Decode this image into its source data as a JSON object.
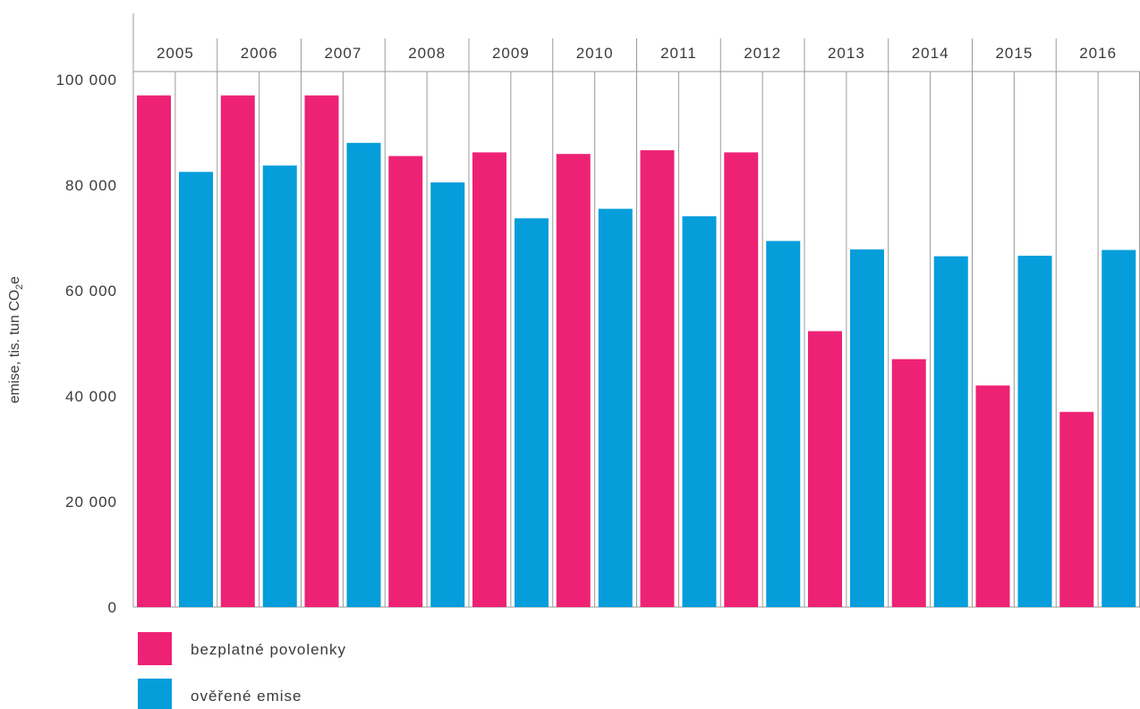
{
  "chart_data": {
    "type": "bar",
    "title": "",
    "xlabel": "",
    "ylabel": {
      "main": "emise, tis. tun CO",
      "subscript": "2",
      "suffix": "e"
    },
    "ylim": [
      0,
      100000
    ],
    "yticks": [
      "0",
      "20 000",
      "40 000",
      "60 000",
      "80 000",
      "100 000"
    ],
    "ytick_values": [
      0,
      20000,
      40000,
      60000,
      80000,
      100000
    ],
    "categories": [
      "2005",
      "2006",
      "2007",
      "2008",
      "2009",
      "2010",
      "2011",
      "2012",
      "2013",
      "2014",
      "2015",
      "2016"
    ],
    "series": [
      {
        "name": "bezplatné povolenky",
        "color": "#ee2274",
        "values": [
          97000,
          97000,
          97000,
          85500,
          86200,
          85900,
          86600,
          86200,
          52300,
          47000,
          42000,
          37000
        ]
      },
      {
        "name": "ověřené emise",
        "color": "#069ddb",
        "values": [
          82500,
          83700,
          88000,
          80500,
          73700,
          75500,
          74100,
          69400,
          67800,
          66500,
          66600,
          67700
        ]
      }
    ],
    "grid": "vertical separators",
    "legend_position": "bottom-left"
  }
}
